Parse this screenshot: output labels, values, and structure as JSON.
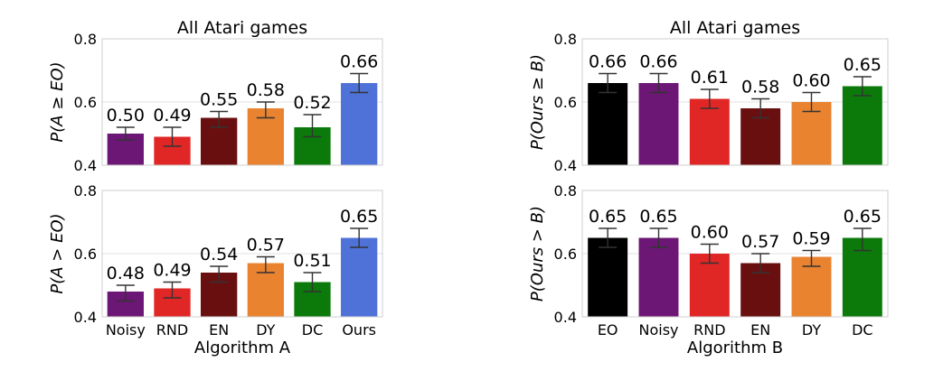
{
  "chart_data": [
    {
      "type": "bar",
      "title": "All Atari games",
      "ylabel": "P(A ≥ EO)",
      "xlabel": "",
      "ylim": [
        0.4,
        0.8
      ],
      "yticks": [
        "0.4",
        "0.6",
        "0.8"
      ],
      "categories": [
        "Noisy",
        "RND",
        "EN",
        "DY",
        "DC",
        "Ours"
      ],
      "show_xticks": false,
      "values": [
        0.5,
        0.49,
        0.55,
        0.58,
        0.52,
        0.66
      ],
      "labels": [
        "0.50",
        "0.49",
        "0.55",
        "0.58",
        "0.52",
        "0.66"
      ],
      "err_low": [
        0.48,
        0.46,
        0.52,
        0.55,
        0.49,
        0.63
      ],
      "err_high": [
        0.52,
        0.52,
        0.57,
        0.6,
        0.56,
        0.69
      ],
      "colors": [
        "#6c1776",
        "#e12626",
        "#6a0f0f",
        "#e98330",
        "#0b7a0b",
        "#4f72d8"
      ],
      "grid": true
    },
    {
      "type": "bar",
      "title": "",
      "ylabel": "P(A > EO)",
      "xlabel": "Algorithm A",
      "ylim": [
        0.4,
        0.8
      ],
      "yticks": [
        "0.4",
        "0.6",
        "0.8"
      ],
      "categories": [
        "Noisy",
        "RND",
        "EN",
        "DY",
        "DC",
        "Ours"
      ],
      "show_xticks": true,
      "values": [
        0.48,
        0.49,
        0.54,
        0.57,
        0.51,
        0.65
      ],
      "labels": [
        "0.48",
        "0.49",
        "0.54",
        "0.57",
        "0.51",
        "0.65"
      ],
      "err_low": [
        0.45,
        0.46,
        0.51,
        0.54,
        0.48,
        0.62
      ],
      "err_high": [
        0.5,
        0.51,
        0.56,
        0.59,
        0.54,
        0.68
      ],
      "colors": [
        "#6c1776",
        "#e12626",
        "#6a0f0f",
        "#e98330",
        "#0b7a0b",
        "#4f72d8"
      ],
      "grid": true
    },
    {
      "type": "bar",
      "title": "All Atari games",
      "ylabel": "P(Ours ≥ B)",
      "xlabel": "",
      "ylim": [
        0.4,
        0.8
      ],
      "yticks": [
        "0.4",
        "0.6",
        "0.8"
      ],
      "categories": [
        "EO",
        "Noisy",
        "RND",
        "EN",
        "DY",
        "DC"
      ],
      "show_xticks": false,
      "values": [
        0.66,
        0.66,
        0.61,
        0.58,
        0.6,
        0.65
      ],
      "labels": [
        "0.66",
        "0.66",
        "0.61",
        "0.58",
        "0.60",
        "0.65"
      ],
      "err_low": [
        0.63,
        0.63,
        0.58,
        0.55,
        0.57,
        0.62
      ],
      "err_high": [
        0.69,
        0.69,
        0.64,
        0.61,
        0.63,
        0.68
      ],
      "colors": [
        "#000000",
        "#6c1776",
        "#e12626",
        "#6a0f0f",
        "#e98330",
        "#0b7a0b"
      ],
      "grid": true
    },
    {
      "type": "bar",
      "title": "",
      "ylabel": "P(Ours > B)",
      "xlabel": "Algorithm B",
      "ylim": [
        0.4,
        0.8
      ],
      "yticks": [
        "0.4",
        "0.6",
        "0.8"
      ],
      "categories": [
        "EO",
        "Noisy",
        "RND",
        "EN",
        "DY",
        "DC"
      ],
      "show_xticks": true,
      "values": [
        0.65,
        0.65,
        0.6,
        0.57,
        0.59,
        0.65
      ],
      "labels": [
        "0.65",
        "0.65",
        "0.60",
        "0.57",
        "0.59",
        "0.65"
      ],
      "err_low": [
        0.62,
        0.62,
        0.57,
        0.54,
        0.56,
        0.61
      ],
      "err_high": [
        0.68,
        0.68,
        0.63,
        0.6,
        0.61,
        0.68
      ],
      "colors": [
        "#000000",
        "#6c1776",
        "#e12626",
        "#6a0f0f",
        "#e98330",
        "#0b7a0b"
      ],
      "grid": true
    }
  ]
}
